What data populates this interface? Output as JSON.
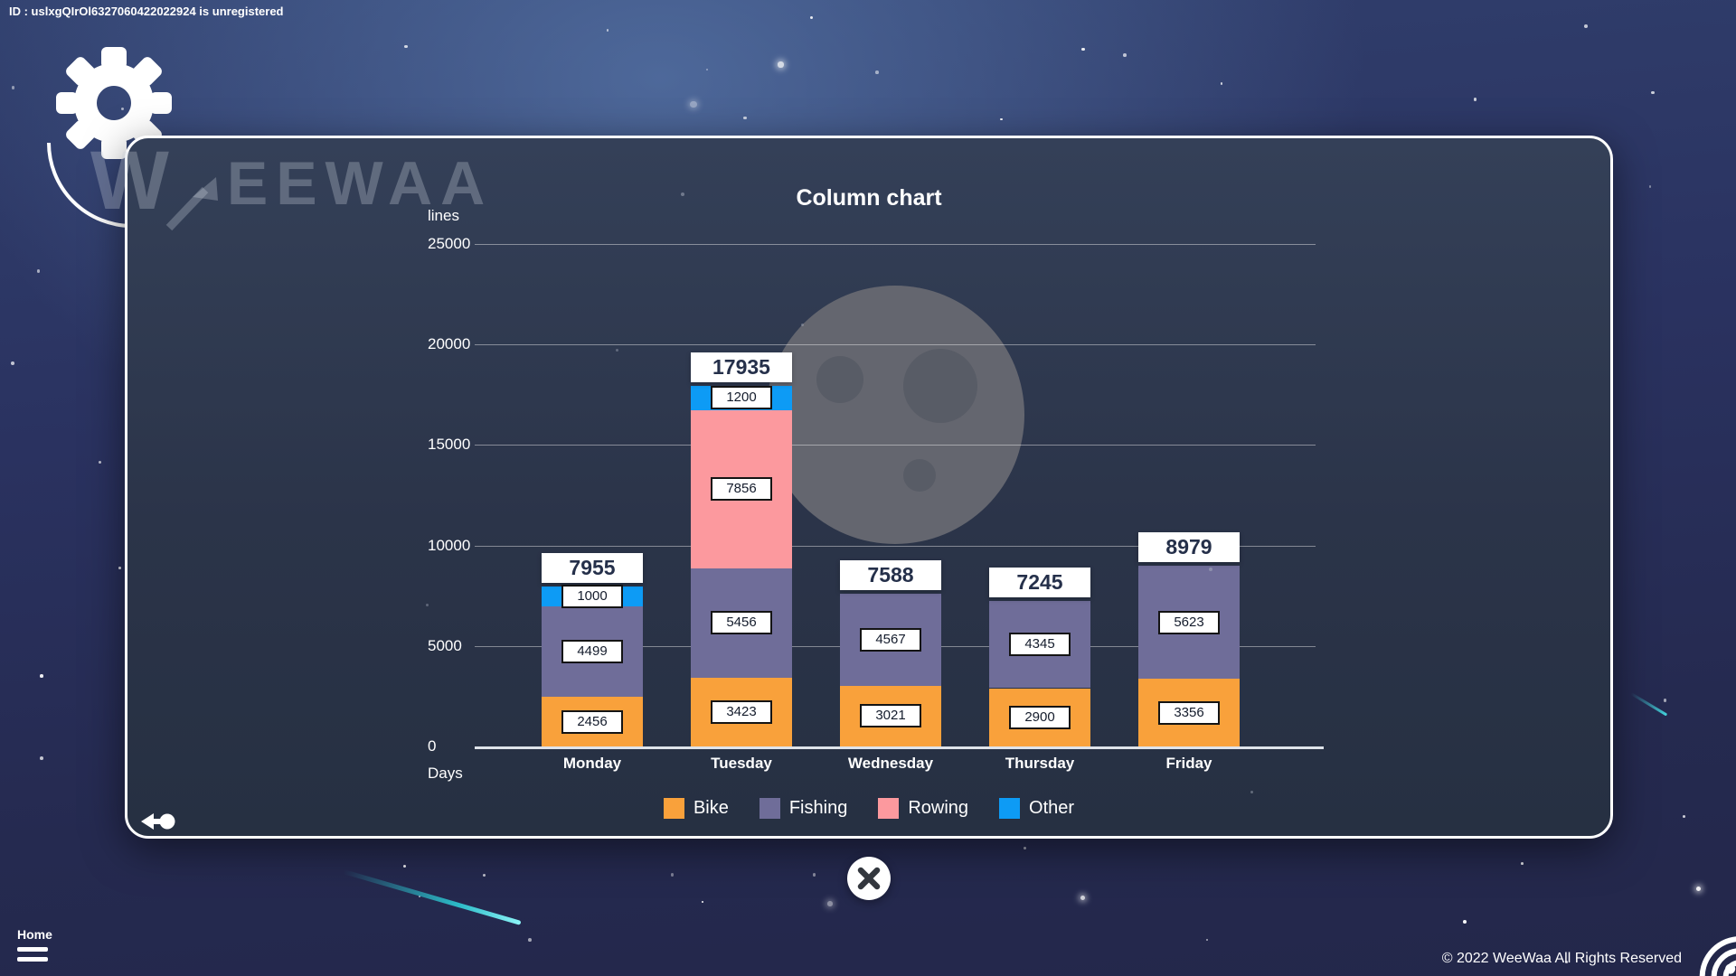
{
  "header": {
    "id_text": "ID : uslxgQIrOl6327060422022924 is unregistered"
  },
  "logo": {
    "monogram": "W",
    "brand": "EEWAA"
  },
  "panel": {
    "title": "Column chart"
  },
  "chart_data": {
    "type": "bar",
    "stacked": true,
    "title": "Column chart",
    "ylabel": "lines",
    "xlabel": "Days",
    "ylim": [
      0,
      25000
    ],
    "yticks": [
      25000,
      20000,
      15000,
      10000,
      5000,
      0
    ],
    "grid": true,
    "legend_position": "bottom",
    "categories": [
      "Monday",
      "Tuesday",
      "Wednesday",
      "Thursday",
      "Friday"
    ],
    "series": [
      {
        "name": "Bike",
        "color": "#F9A13B",
        "values": [
          2456,
          3423,
          3021,
          2900,
          3356
        ]
      },
      {
        "name": "Fishing",
        "color": "#6F6D99",
        "values": [
          4499,
          5456,
          4567,
          4345,
          5623
        ]
      },
      {
        "name": "Rowing",
        "color": "#FC999E",
        "values": [
          0,
          7856,
          0,
          0,
          0
        ]
      },
      {
        "name": "Other",
        "color": "#0D9BF5",
        "values": [
          1000,
          1200,
          0,
          0,
          0
        ]
      }
    ],
    "totals": [
      7955,
      17935,
      7588,
      7245,
      8979
    ]
  },
  "footer": {
    "home_label": "Home",
    "copyright": "© 2022 WeeWaa All Rights Reserved"
  }
}
